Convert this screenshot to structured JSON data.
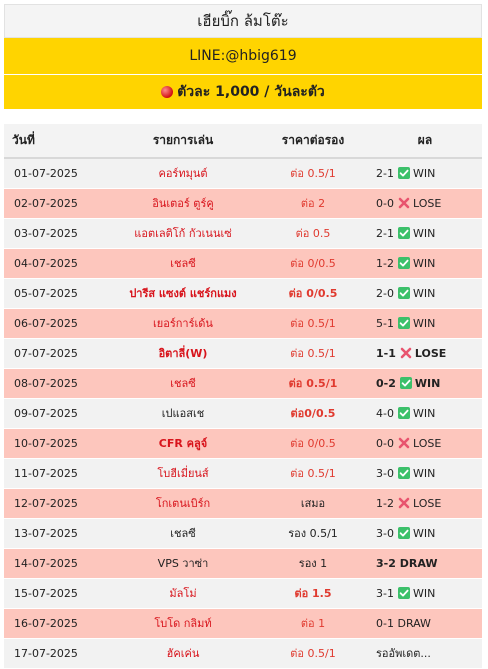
{
  "header": {
    "title": "เฮียบิ๊ก ล้มโต๊ะ",
    "line": "LINE:@hbig619",
    "price": "ตัวละ 1,000 / วันละตัว"
  },
  "columns": [
    "วันที่",
    "รายการเล่น",
    "ราคาต่อรอง",
    "ผล"
  ],
  "colors": {
    "yellow": "#ffd400",
    "row_pink": "#fdc6bd",
    "row_grey": "#f2f2f2",
    "team_red": "#d8141c",
    "win_green": "#3cc06a",
    "lose_red": "#e8546e"
  },
  "rows": [
    {
      "date": "01-07-2025",
      "team": "คอร์ทมุนต์",
      "odds": "ต่อ 0.5/1",
      "score": "2-1",
      "icon": "check-icon",
      "result": "WIN"
    },
    {
      "date": "02-07-2025",
      "team": "อินเตอร์ ตูร์คู",
      "odds": "ต่อ 2",
      "score": "0-0",
      "icon": "cross-icon",
      "result": "LOSE"
    },
    {
      "date": "03-07-2025",
      "team": "แอตเลติโก้ กัวเนนเซ่",
      "odds": "ต่อ 0.5",
      "score": "2-1",
      "icon": "check-icon",
      "result": "WIN"
    },
    {
      "date": "04-07-2025",
      "team": "เชลซี",
      "odds": "ต่อ 0/0.5",
      "score": "1-2",
      "icon": "check-icon",
      "result": "WIN"
    },
    {
      "date": "05-07-2025",
      "team": "ปารีส แซงต์ แชร์กแมง",
      "odds": "ต่อ 0/0.5",
      "score": "2-0",
      "icon": "check-icon",
      "result": "WIN"
    },
    {
      "date": "06-07-2025",
      "team": "เยอร์การ์เด้น",
      "odds": "ต่อ 0.5/1",
      "score": "5-1",
      "icon": "check-icon",
      "result": "WIN"
    },
    {
      "date": "07-07-2025",
      "team": "อิตาลี่(W)",
      "odds": "ต่อ 0.5/1",
      "score": "1-1",
      "icon": "cross-icon",
      "result": "LOSE"
    },
    {
      "date": "08-07-2025",
      "team": "เชลซี",
      "odds": "ต่อ 0.5/1",
      "score": "0-2",
      "icon": "check-icon",
      "result": "WIN"
    },
    {
      "date": "09-07-2025",
      "team": "เปแอสเช",
      "odds": "ต่อ0/0.5",
      "score": "4-0",
      "icon": "check-icon",
      "result": "WIN"
    },
    {
      "date": "10-07-2025",
      "team": "CFR คลูจ์",
      "odds": "ต่อ 0/0.5",
      "score": "0-0",
      "icon": "cross-icon",
      "result": "LOSE"
    },
    {
      "date": "11-07-2025",
      "team": "โบฮีเมี่ยนส์",
      "odds": "ต่อ 0.5/1",
      "score": "3-0",
      "icon": "check-icon",
      "result": "WIN"
    },
    {
      "date": "12-07-2025",
      "team": "โกเตนเบิร์ก",
      "odds": "เสมอ",
      "score": "1-2",
      "icon": "cross-icon",
      "result": "LOSE"
    },
    {
      "date": "13-07-2025",
      "team": "เชลซี",
      "odds": "รอง 0.5/1",
      "score": "3-0",
      "icon": "check-icon",
      "result": "WIN"
    },
    {
      "date": "14-07-2025",
      "team": "VPS วาซ่า",
      "odds": "รอง 1",
      "score": "3-2",
      "icon": "",
      "result": "DRAW"
    },
    {
      "date": "15-07-2025",
      "team": "มัลโม่",
      "odds": "ต่อ  1.5",
      "score": "3-1",
      "icon": "check-icon",
      "result": "WIN"
    },
    {
      "date": "16-07-2025",
      "team": "โบโด กลิมท์",
      "odds": "ต่อ 1",
      "score": "0-1",
      "icon": "",
      "result": "DRAW"
    },
    {
      "date": "17-07-2025",
      "team": "ฮัคเค่น",
      "odds": "ต่อ 0.5/1",
      "score": "",
      "icon": "",
      "result": "รออัพเดต..."
    }
  ]
}
